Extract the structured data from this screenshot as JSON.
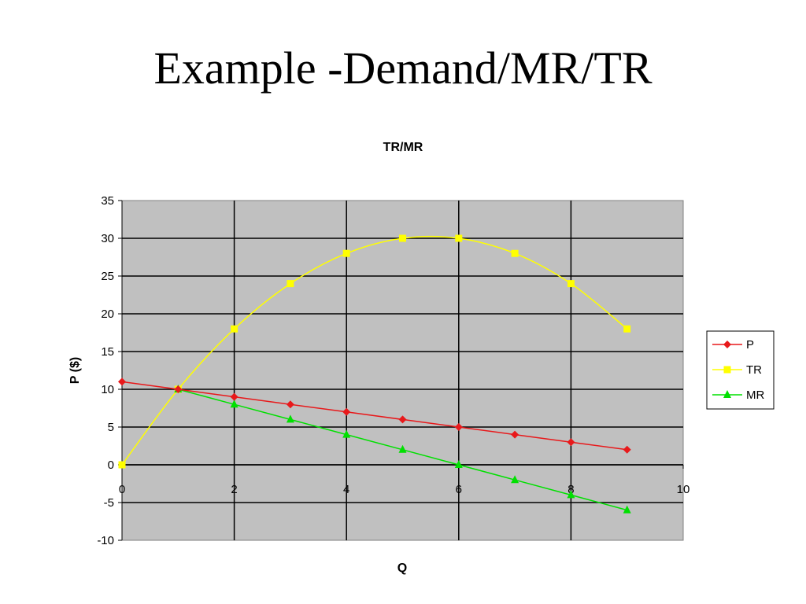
{
  "slide": {
    "title": "Example -Demand/MR/TR"
  },
  "chart_data": {
    "type": "line",
    "title": "TR/MR",
    "xlabel": "Q",
    "ylabel": "P ($)",
    "xlim": [
      0,
      10
    ],
    "ylim": [
      -10,
      35
    ],
    "x_ticks": [
      0,
      2,
      4,
      6,
      8,
      10
    ],
    "y_ticks": [
      -10,
      -5,
      0,
      5,
      10,
      15,
      20,
      25,
      30,
      35
    ],
    "grid": true,
    "legend_position": "right",
    "background_color": "#c0c0c0",
    "series": [
      {
        "name": "P",
        "color": "#e8191b",
        "marker": "diamond",
        "smooth": false,
        "x": [
          0,
          1,
          2,
          3,
          4,
          5,
          6,
          7,
          8,
          9
        ],
        "values": [
          11,
          10,
          9,
          8,
          7,
          6,
          5,
          4,
          3,
          2
        ]
      },
      {
        "name": "TR",
        "color": "#ffff00",
        "marker": "square",
        "smooth": true,
        "x": [
          0,
          1,
          2,
          3,
          4,
          5,
          6,
          7,
          8,
          9
        ],
        "values": [
          0,
          10,
          18,
          24,
          28,
          30,
          30,
          28,
          24,
          18
        ]
      },
      {
        "name": "MR",
        "color": "#00e000",
        "marker": "triangle",
        "smooth": false,
        "x": [
          1,
          2,
          3,
          4,
          5,
          6,
          7,
          8,
          9
        ],
        "values": [
          10,
          8,
          6,
          4,
          2,
          0,
          -2,
          -4,
          -6
        ]
      }
    ]
  }
}
